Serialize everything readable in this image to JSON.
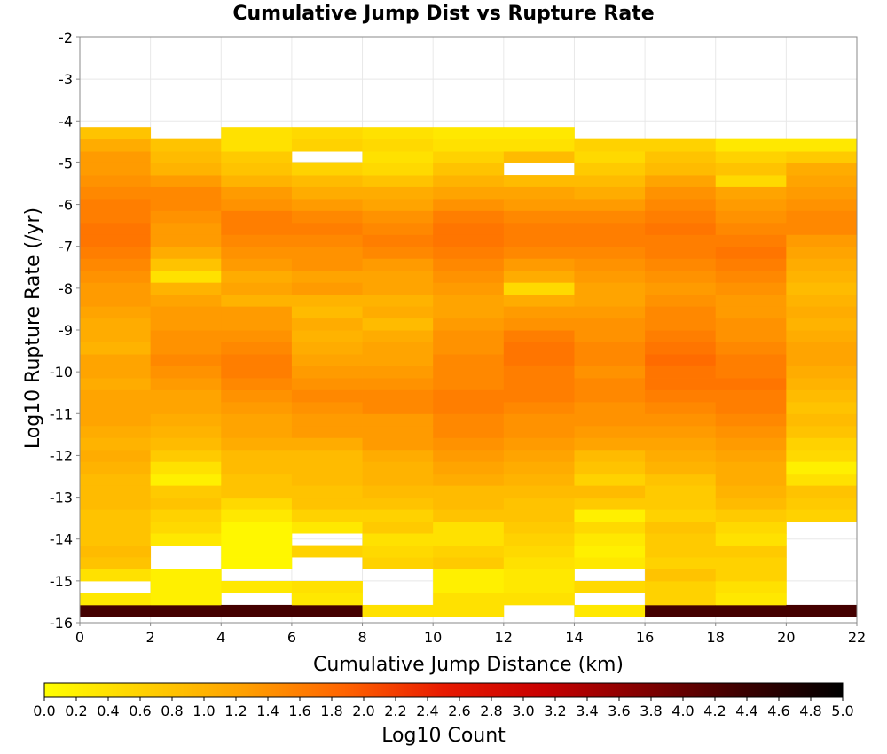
{
  "chart_data": {
    "type": "heatmap",
    "title": "Cumulative Jump Dist vs Rupture Rate",
    "xlabel": "Cumulative Jump Distance (km)",
    "ylabel": "Log10 Rupture Rate (/yr)",
    "xlim": [
      0,
      22
    ],
    "ylim": [
      -16,
      -2
    ],
    "x_ticks": [
      0,
      2,
      4,
      6,
      8,
      10,
      12,
      14,
      16,
      18,
      20,
      22
    ],
    "y_ticks": [
      -2,
      -3,
      -4,
      -5,
      -6,
      -7,
      -8,
      -9,
      -10,
      -11,
      -12,
      -13,
      -14,
      -15,
      -16
    ],
    "grid": true,
    "x_bin_width": 2,
    "y_bin_width": 0.2857,
    "colorbar": {
      "label": "Log10 Count",
      "range": [
        0.0,
        5.0
      ],
      "ticks": [
        "0.0",
        "0.2",
        "0.4",
        "0.6",
        "0.8",
        "1.0",
        "1.2",
        "1.4",
        "1.6",
        "1.8",
        "2.0",
        "2.2",
        "2.4",
        "2.6",
        "2.8",
        "3.0",
        "3.2",
        "3.4",
        "3.6",
        "3.8",
        "4.0",
        "4.2",
        "4.4",
        "4.6",
        "4.8",
        "5.0"
      ],
      "colors": [
        "#ffff00",
        "#ffd000",
        "#ffa000",
        "#ff6400",
        "#e81a00",
        "#c80000",
        "#820000",
        "#3c0000",
        "#000000"
      ]
    },
    "columns": [
      {
        "x": 1,
        "ymin": -15.86,
        "values": [
          4.3,
          0.3,
          null,
          0.4,
          0.8,
          0.9,
          0.8,
          0.8,
          0.8,
          0.9,
          0.9,
          0.9,
          1.0,
          1.1,
          1.0,
          1.1,
          1.2,
          1.2,
          1.2,
          1.1,
          1.2,
          1.2,
          1.0,
          1.1,
          1.1,
          1.2,
          1.3,
          1.3,
          1.4,
          1.5,
          1.6,
          1.7,
          1.7,
          1.6,
          1.6,
          1.5,
          1.4,
          1.3,
          1.3,
          1.1,
          0.8
        ]
      },
      {
        "x": 3,
        "ymin": -15.86,
        "values": [
          4.3,
          0.2,
          0.2,
          0.2,
          null,
          null,
          0.3,
          0.5,
          0.6,
          0.8,
          0.7,
          0.2,
          0.4,
          0.7,
          0.9,
          1.0,
          1.1,
          1.2,
          1.2,
          1.3,
          1.4,
          1.5,
          1.4,
          1.4,
          1.3,
          1.3,
          1.2,
          1.0,
          0.4,
          0.8,
          1.1,
          1.3,
          1.3,
          1.4,
          1.5,
          1.5,
          1.3,
          1.0,
          0.9,
          0.8
        ]
      },
      {
        "x": 5,
        "ymin": -15.86,
        "values": [
          4.3,
          null,
          0.3,
          null,
          0.1,
          0.1,
          0.1,
          0.1,
          0.3,
          0.5,
          0.8,
          0.8,
          0.9,
          0.9,
          1.1,
          1.2,
          1.2,
          1.3,
          1.4,
          1.5,
          1.6,
          1.6,
          1.5,
          1.4,
          1.3,
          1.3,
          1.0,
          1.2,
          1.1,
          1.3,
          1.4,
          1.5,
          1.6,
          1.6,
          1.4,
          1.3,
          1.0,
          0.8,
          0.7,
          0.4,
          0.4
        ]
      },
      {
        "x": 7,
        "ymin": -15.86,
        "values": [
          4.3,
          0.3,
          0.4,
          null,
          null,
          0.6,
          null,
          0.3,
          0.6,
          0.8,
          0.8,
          0.9,
          0.9,
          0.9,
          1.1,
          1.3,
          1.3,
          1.4,
          1.5,
          1.4,
          1.3,
          1.2,
          1.1,
          1.0,
          1.1,
          0.9,
          1.0,
          1.3,
          1.2,
          1.4,
          1.4,
          1.5,
          1.6,
          1.5,
          1.3,
          1.1,
          0.9,
          0.6,
          null,
          0.6,
          0.5
        ]
      },
      {
        "x": 9,
        "ymin": -15.86,
        "values": [
          0.4,
          null,
          null,
          null,
          0.6,
          0.5,
          0.4,
          0.7,
          0.6,
          0.8,
          0.9,
          1.0,
          1.0,
          1.1,
          1.3,
          1.3,
          1.3,
          1.5,
          1.5,
          1.4,
          1.3,
          1.2,
          1.2,
          1.1,
          0.9,
          1.1,
          1.0,
          1.2,
          1.2,
          1.3,
          1.5,
          1.6,
          1.5,
          1.4,
          1.2,
          1.1,
          0.8,
          0.5,
          0.4,
          0.5,
          0.4
        ]
      },
      {
        "x": 11,
        "ymin": -15.86,
        "values": [
          0.4,
          0.4,
          0.2,
          0.2,
          0.7,
          0.6,
          0.4,
          0.4,
          0.8,
          0.9,
          0.9,
          1.1,
          1.2,
          1.3,
          1.4,
          1.5,
          1.5,
          1.6,
          1.6,
          1.5,
          1.5,
          1.5,
          1.4,
          1.4,
          1.3,
          1.2,
          1.2,
          1.3,
          1.4,
          1.5,
          1.6,
          1.7,
          1.7,
          1.6,
          1.4,
          1.2,
          1.0,
          0.8,
          0.6,
          0.4,
          0.3
        ]
      },
      {
        "x": 13,
        "ymin": -15.86,
        "values": [
          null,
          0.4,
          0.3,
          0.3,
          0.4,
          0.5,
          0.6,
          0.7,
          0.8,
          0.8,
          0.9,
          1.0,
          1.1,
          1.2,
          1.3,
          1.4,
          1.4,
          1.5,
          1.6,
          1.6,
          1.6,
          1.7,
          1.7,
          1.6,
          1.4,
          1.3,
          1.1,
          0.5,
          1.1,
          1.3,
          1.5,
          1.6,
          1.6,
          1.5,
          1.3,
          1.2,
          0.9,
          null,
          0.9,
          0.4,
          0.3
        ]
      },
      {
        "x": 15,
        "ymin": -15.86,
        "values": [
          0.3,
          null,
          0.5,
          null,
          0.3,
          0.2,
          0.3,
          0.5,
          0.2,
          0.7,
          0.9,
          0.6,
          0.8,
          0.9,
          1.2,
          1.3,
          1.4,
          1.4,
          1.5,
          1.5,
          1.4,
          1.5,
          1.5,
          1.4,
          1.4,
          1.3,
          1.2,
          1.2,
          1.3,
          1.4,
          1.5,
          1.6,
          1.6,
          1.5,
          1.3,
          1.1,
          0.9,
          0.7,
          0.5,
          0.6
        ]
      },
      {
        "x": 17,
        "ymin": -15.86,
        "values": [
          4.3,
          0.6,
          0.6,
          0.8,
          0.6,
          0.7,
          0.7,
          0.8,
          0.6,
          0.7,
          0.7,
          0.8,
          1.0,
          1.1,
          1.2,
          1.3,
          1.4,
          1.5,
          1.6,
          1.7,
          1.7,
          1.8,
          1.7,
          1.6,
          1.5,
          1.5,
          1.4,
          1.3,
          1.4,
          1.5,
          1.6,
          1.6,
          1.7,
          1.6,
          1.5,
          1.4,
          1.2,
          0.9,
          0.8,
          0.6
        ]
      },
      {
        "x": 19,
        "ymin": -15.86,
        "values": [
          4.3,
          0.3,
          0.4,
          0.6,
          0.6,
          0.7,
          0.4,
          0.5,
          0.7,
          0.9,
          1.0,
          1.1,
          1.1,
          1.2,
          1.3,
          1.4,
          1.5,
          1.6,
          1.6,
          1.7,
          1.6,
          1.6,
          1.5,
          1.4,
          1.4,
          1.3,
          1.3,
          1.4,
          1.5,
          1.6,
          1.7,
          1.6,
          1.5,
          1.4,
          1.3,
          1.2,
          0.5,
          0.8,
          0.6,
          0.3
        ]
      },
      {
        "x": 21,
        "ymin": -15.86,
        "values": [
          4.3,
          null,
          null,
          null,
          null,
          null,
          null,
          null,
          0.6,
          0.7,
          0.8,
          0.4,
          0.2,
          0.5,
          0.6,
          0.8,
          0.9,
          0.8,
          0.9,
          1.0,
          1.1,
          1.2,
          1.2,
          1.1,
          1.0,
          1.1,
          1.0,
          0.9,
          1.0,
          1.1,
          1.2,
          1.3,
          1.5,
          1.5,
          1.4,
          1.3,
          1.2,
          1.1,
          0.7,
          0.3
        ]
      }
    ]
  }
}
